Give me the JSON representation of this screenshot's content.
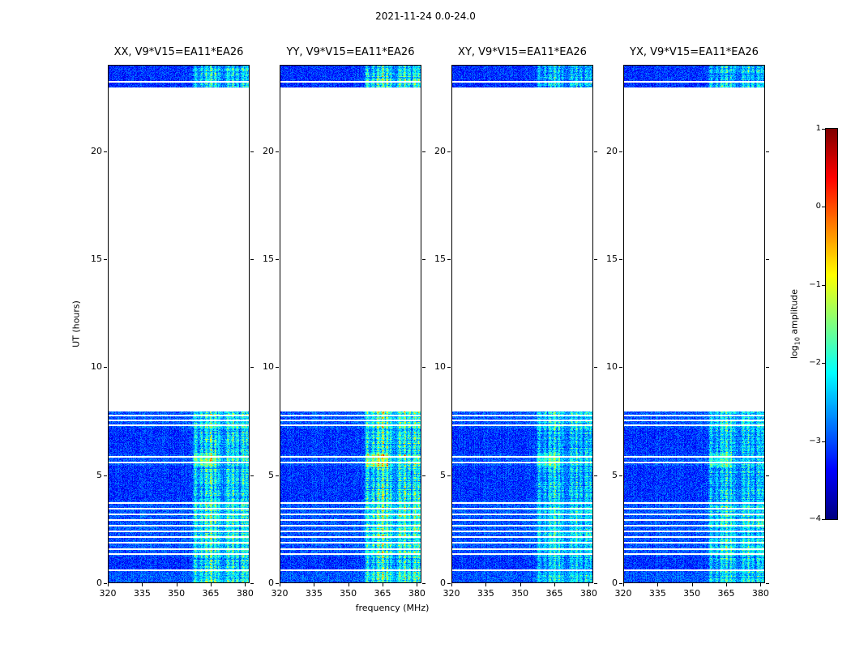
{
  "chart_data": {
    "type": "heatmap",
    "title": "2021-11-24 0.0-24.0",
    "xlabel": "frequency (MHz)",
    "ylabel": "UT (hours)",
    "xlim": [
      320,
      382
    ],
    "ylim": [
      0,
      24
    ],
    "xticks": [
      320,
      335,
      350,
      365,
      380
    ],
    "yticks": [
      0,
      5,
      10,
      15,
      20
    ],
    "grid": false,
    "panels": [
      {
        "title": "XX, V9*V15=EA11*EA26",
        "rfi_gain": 1.0,
        "seed": 101
      },
      {
        "title": "YY, V9*V15=EA11*EA26",
        "rfi_gain": 1.15,
        "seed": 202
      },
      {
        "title": "XY, V9*V15=EA11*EA26",
        "rfi_gain": 0.78,
        "seed": 303
      },
      {
        "title": "YX, V9*V15=EA11*EA26",
        "rfi_gain": 0.82,
        "seed": 404
      }
    ],
    "data_segments": [
      {
        "t_start": 23.0,
        "t_end": 24.0,
        "base_level": -3.5
      },
      {
        "t_start": 0.0,
        "t_end": 7.95,
        "base_level": -3.5
      }
    ],
    "scan_gaps_hours": [
      0.55,
      1.3,
      1.55,
      1.85,
      2.12,
      2.38,
      2.64,
      2.9,
      3.17,
      3.43,
      3.68,
      5.56,
      5.82,
      7.3,
      7.52,
      7.74,
      23.25
    ],
    "bright_intervals": [
      [
        0.0,
        0.55
      ],
      [
        1.2,
        3.8
      ],
      [
        5.4,
        5.95
      ],
      [
        7.15,
        7.95
      ]
    ],
    "rfi": {
      "band_start_mhz": 357,
      "band_end_mhz": 382,
      "diffuse_level": 0.3,
      "strong_lines": [
        {
          "f": 358.5,
          "s": 0.9
        },
        {
          "f": 361.0,
          "s": 0.8
        },
        {
          "f": 363.2,
          "s": 1.1
        },
        {
          "f": 365.3,
          "s": 1.5
        },
        {
          "f": 367.2,
          "s": 1.0
        },
        {
          "f": 369.0,
          "s": 0.7
        },
        {
          "f": 372.8,
          "s": 1.0
        },
        {
          "f": 375.0,
          "s": 1.2
        },
        {
          "f": 377.0,
          "s": 0.8
        },
        {
          "f": 379.3,
          "s": 1.0
        },
        {
          "f": 381.2,
          "s": 0.9
        }
      ],
      "hotspot": {
        "t": [
          5.35,
          6.0
        ],
        "f": [
          357.5,
          367.5
        ],
        "boost": 0.55
      }
    },
    "colorbar": {
      "label_prefix": "log",
      "label_sub": "10",
      "label_suffix": " amplitude",
      "ticks": [
        1,
        0,
        -1,
        -2,
        -3,
        -4
      ],
      "vmin": -4,
      "vmax": 1,
      "colormap": "jet"
    }
  }
}
